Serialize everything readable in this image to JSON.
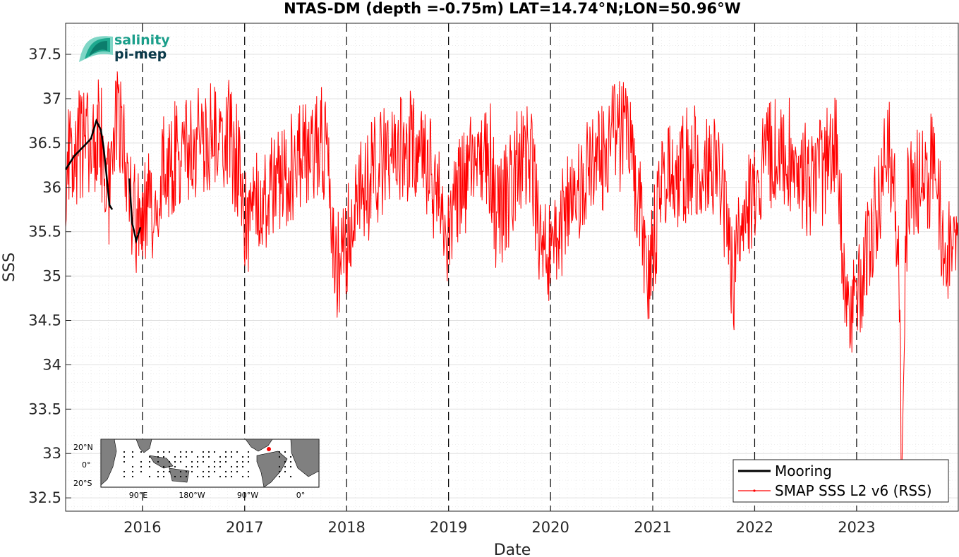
{
  "chart_data": {
    "type": "line",
    "title": "NTAS-DM (depth =-0.75m) LAT=14.74°N;LON=50.96°W",
    "xlabel": "Date",
    "ylabel": "SSS",
    "xlim": [
      "2015-04-01",
      "2023-12-31"
    ],
    "ylim": [
      32.35,
      37.85
    ],
    "x_tick_labels": [
      "2016",
      "2017",
      "2018",
      "2019",
      "2020",
      "2021",
      "2022",
      "2023"
    ],
    "y_tick_labels": [
      "32.5",
      "33",
      "33.5",
      "34",
      "34.5",
      "35",
      "35.5",
      "36",
      "36.5",
      "37",
      "37.5"
    ],
    "y_ticks": [
      32.5,
      33,
      33.5,
      34,
      34.5,
      35,
      35.5,
      36,
      36.5,
      37,
      37.5
    ],
    "year_boundaries": [
      "2016-01-01",
      "2017-01-01",
      "2018-01-01",
      "2019-01-01",
      "2020-01-01",
      "2021-01-01",
      "2022-01-01",
      "2023-01-01"
    ],
    "grid": true,
    "legend_position": "bottom-right",
    "series": [
      {
        "name": "Mooring",
        "color": "#000000",
        "points": [
          [
            "2015-04-01",
            36.2
          ],
          [
            "2015-05-01",
            36.35
          ],
          [
            "2015-06-01",
            36.45
          ],
          [
            "2015-07-01",
            36.55
          ],
          [
            "2015-07-20",
            36.75
          ],
          [
            "2015-08-05",
            36.65
          ],
          [
            "2015-08-15",
            36.45
          ],
          [
            "2015-08-25",
            36.15
          ],
          [
            "2015-09-05",
            35.8
          ],
          [
            "2015-09-15",
            35.75
          ],
          [
            "2015-11-15",
            36.1
          ],
          [
            "2015-11-25",
            35.6
          ],
          [
            "2015-12-10",
            35.4
          ],
          [
            "2015-12-25",
            35.55
          ]
        ]
      },
      {
        "name": "SMAP SSS L2 v6 (RSS)",
        "color": "#ff0000",
        "points": [
          [
            "2015-04-01",
            36.2
          ],
          [
            "2015-05-01",
            36.4
          ],
          [
            "2015-06-01",
            36.5
          ],
          [
            "2015-07-01",
            36.45
          ],
          [
            "2015-08-01",
            36.6
          ],
          [
            "2015-08-20",
            36.3
          ],
          [
            "2015-09-01",
            35.9
          ],
          [
            "2015-10-01",
            36.8
          ],
          [
            "2015-11-01",
            36.5
          ],
          [
            "2015-11-20",
            35.8
          ],
          [
            "2015-12-15",
            35.5
          ],
          [
            "2016-01-15",
            35.7
          ],
          [
            "2016-02-15",
            35.9
          ],
          [
            "2016-03-15",
            36.2
          ],
          [
            "2016-05-01",
            36.4
          ],
          [
            "2016-07-01",
            36.5
          ],
          [
            "2016-09-01",
            36.55
          ],
          [
            "2016-11-01",
            36.6
          ],
          [
            "2016-12-15",
            36.2
          ],
          [
            "2017-01-10",
            35.4
          ],
          [
            "2017-02-15",
            35.8
          ],
          [
            "2017-04-01",
            36.0
          ],
          [
            "2017-06-01",
            36.2
          ],
          [
            "2017-08-01",
            36.4
          ],
          [
            "2017-10-01",
            36.6
          ],
          [
            "2017-11-01",
            36.2
          ],
          [
            "2017-11-20",
            35.0
          ],
          [
            "2017-12-20",
            35.2
          ],
          [
            "2018-02-01",
            35.8
          ],
          [
            "2018-04-01",
            36.1
          ],
          [
            "2018-06-01",
            36.4
          ],
          [
            "2018-08-01",
            36.5
          ],
          [
            "2018-10-01",
            36.4
          ],
          [
            "2018-12-01",
            35.8
          ],
          [
            "2019-01-01",
            35.4
          ],
          [
            "2019-02-01",
            36.0
          ],
          [
            "2019-04-01",
            36.2
          ],
          [
            "2019-06-01",
            36.3
          ],
          [
            "2019-06-20",
            35.6
          ],
          [
            "2019-07-15",
            35.8
          ],
          [
            "2019-09-01",
            36.2
          ],
          [
            "2019-10-15",
            36.5
          ],
          [
            "2019-11-15",
            35.6
          ],
          [
            "2019-12-20",
            35.2
          ],
          [
            "2020-02-01",
            35.5
          ],
          [
            "2020-04-01",
            35.9
          ],
          [
            "2020-06-01",
            36.2
          ],
          [
            "2020-08-01",
            36.5
          ],
          [
            "2020-10-01",
            36.6
          ],
          [
            "2020-11-15",
            35.8
          ],
          [
            "2020-12-20",
            35.0
          ],
          [
            "2021-02-01",
            36.0
          ],
          [
            "2021-04-01",
            36.2
          ],
          [
            "2021-06-01",
            36.3
          ],
          [
            "2021-08-01",
            36.2
          ],
          [
            "2021-09-15",
            35.8
          ],
          [
            "2021-10-15",
            34.9
          ],
          [
            "2021-12-01",
            35.8
          ],
          [
            "2022-02-01",
            36.2
          ],
          [
            "2022-04-01",
            36.5
          ],
          [
            "2022-06-01",
            36.3
          ],
          [
            "2022-07-15",
            36.0
          ],
          [
            "2022-09-01",
            36.2
          ],
          [
            "2022-10-20",
            36.5
          ],
          [
            "2022-11-20",
            35.0
          ],
          [
            "2022-12-15",
            34.5
          ],
          [
            "2023-02-01",
            35.2
          ],
          [
            "2023-03-15",
            35.8
          ],
          [
            "2023-05-01",
            36.4
          ],
          [
            "2023-06-01",
            35.2
          ],
          [
            "2023-06-10",
            32.9
          ],
          [
            "2023-07-01",
            35.8
          ],
          [
            "2023-08-15",
            36.1
          ],
          [
            "2023-10-01",
            36.2
          ],
          [
            "2023-11-10",
            35.4
          ],
          [
            "2023-12-31",
            35.0
          ]
        ]
      }
    ]
  },
  "logo": {
    "line1": "salinity",
    "line2": "pi-mep"
  },
  "inset_map": {
    "lat_labels": [
      "20°N",
      "0°",
      "20°S"
    ],
    "lon_labels": [
      "90°E",
      "180°W",
      "90°W",
      "0°"
    ],
    "ocean_color": "#ffffff",
    "land_color": "#808080",
    "site_marker_color": "#ff0000"
  }
}
